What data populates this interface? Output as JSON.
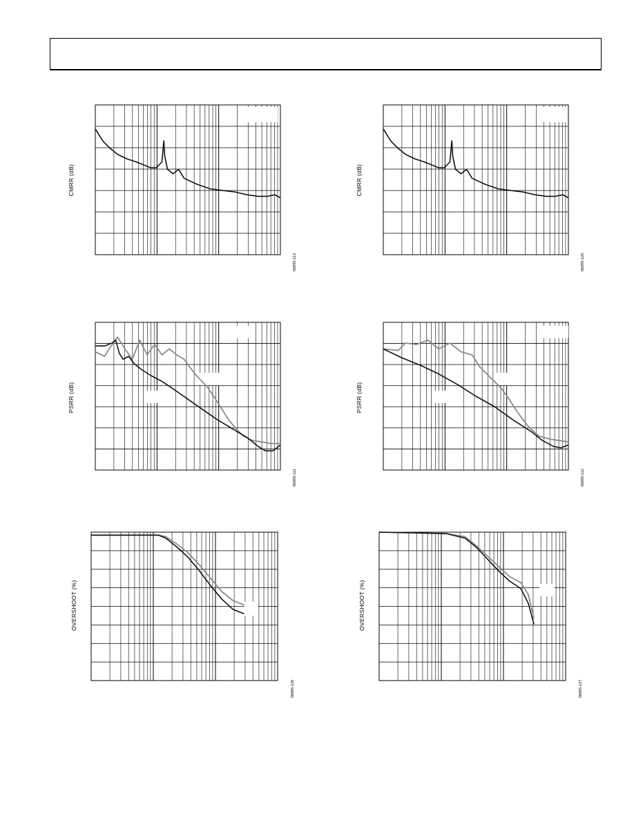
{
  "page": {
    "header_text": ""
  },
  "panels": [
    {
      "id": "p1",
      "ylabel": "CMRR (dB)",
      "figcode": "06895-113"
    },
    {
      "id": "p2",
      "ylabel": "CMRR (dB)",
      "figcode": "06895-120"
    },
    {
      "id": "p3",
      "ylabel": "PSRR (dB)",
      "figcode": "06895-111"
    },
    {
      "id": "p4",
      "ylabel": "PSRR (dB)",
      "figcode": "06895-112"
    },
    {
      "id": "p5",
      "ylabel": "OVERSHOOT (%)",
      "figcode": "06895-126"
    },
    {
      "id": "p6",
      "ylabel": "OVERSHOOT (%)",
      "figcode": "06895-127"
    }
  ],
  "colors": {
    "primary_series": "#111111",
    "secondary_series": "#8a8a8a",
    "grid": "#000000"
  },
  "chart_data": [
    {
      "type": "line",
      "title": "",
      "xlabel": "",
      "ylabel": "CMRR (dB)",
      "x_scale": "log",
      "grid": true,
      "series": [
        {
          "values": [
            [
              0.0,
              0.16
            ],
            [
              0.01,
              0.18
            ],
            [
              0.04,
              0.24
            ],
            [
              0.08,
              0.29
            ],
            [
              0.12,
              0.33
            ],
            [
              0.17,
              0.36
            ],
            [
              0.22,
              0.38
            ],
            [
              0.26,
              0.4
            ],
            [
              0.3,
              0.42
            ],
            [
              0.33,
              0.42
            ],
            [
              0.36,
              0.38
            ],
            [
              0.37,
              0.24
            ],
            [
              0.375,
              0.34
            ],
            [
              0.39,
              0.43
            ],
            [
              0.42,
              0.46
            ],
            [
              0.45,
              0.43
            ],
            [
              0.48,
              0.49
            ],
            [
              0.55,
              0.53
            ],
            [
              0.62,
              0.56
            ],
            [
              0.68,
              0.57
            ],
            [
              0.75,
              0.58
            ],
            [
              0.82,
              0.6
            ],
            [
              0.88,
              0.61
            ],
            [
              0.93,
              0.61
            ],
            [
              0.97,
              0.6
            ],
            [
              1.0,
              0.62
            ]
          ]
        }
      ]
    },
    {
      "type": "line",
      "title": "",
      "xlabel": "",
      "ylabel": "CMRR (dB)",
      "x_scale": "log",
      "grid": true,
      "series": [
        {
          "values": [
            [
              0.0,
              0.16
            ],
            [
              0.01,
              0.18
            ],
            [
              0.04,
              0.24
            ],
            [
              0.08,
              0.29
            ],
            [
              0.12,
              0.33
            ],
            [
              0.17,
              0.36
            ],
            [
              0.22,
              0.38
            ],
            [
              0.26,
              0.4
            ],
            [
              0.3,
              0.42
            ],
            [
              0.33,
              0.42
            ],
            [
              0.36,
              0.38
            ],
            [
              0.37,
              0.24
            ],
            [
              0.375,
              0.34
            ],
            [
              0.39,
              0.43
            ],
            [
              0.42,
              0.46
            ],
            [
              0.45,
              0.43
            ],
            [
              0.48,
              0.49
            ],
            [
              0.55,
              0.53
            ],
            [
              0.62,
              0.56
            ],
            [
              0.68,
              0.57
            ],
            [
              0.75,
              0.58
            ],
            [
              0.82,
              0.6
            ],
            [
              0.88,
              0.61
            ],
            [
              0.93,
              0.61
            ],
            [
              0.97,
              0.6
            ],
            [
              1.0,
              0.62
            ]
          ]
        }
      ]
    },
    {
      "type": "line",
      "title": "",
      "xlabel": "",
      "ylabel": "PSRR (dB)",
      "x_scale": "log",
      "grid": true,
      "series": [
        {
          "values": [
            [
              0.0,
              0.16
            ],
            [
              0.05,
              0.16
            ],
            [
              0.09,
              0.14
            ],
            [
              0.11,
              0.12
            ],
            [
              0.13,
              0.21
            ],
            [
              0.15,
              0.25
            ],
            [
              0.18,
              0.23
            ],
            [
              0.21,
              0.28
            ],
            [
              0.25,
              0.32
            ],
            [
              0.3,
              0.36
            ],
            [
              0.36,
              0.4
            ],
            [
              0.42,
              0.45
            ],
            [
              0.5,
              0.52
            ],
            [
              0.58,
              0.59
            ],
            [
              0.66,
              0.66
            ],
            [
              0.74,
              0.72
            ],
            [
              0.82,
              0.78
            ],
            [
              0.88,
              0.84
            ],
            [
              0.92,
              0.87
            ],
            [
              0.96,
              0.87
            ],
            [
              1.0,
              0.83
            ]
          ]
        },
        {
          "values": [
            [
              0.0,
              0.2
            ],
            [
              0.05,
              0.23
            ],
            [
              0.08,
              0.17
            ],
            [
              0.12,
              0.1
            ],
            [
              0.16,
              0.18
            ],
            [
              0.2,
              0.25
            ],
            [
              0.24,
              0.12
            ],
            [
              0.28,
              0.22
            ],
            [
              0.32,
              0.15
            ],
            [
              0.36,
              0.22
            ],
            [
              0.4,
              0.18
            ],
            [
              0.44,
              0.22
            ],
            [
              0.48,
              0.25
            ],
            [
              0.52,
              0.32
            ],
            [
              0.56,
              0.38
            ],
            [
              0.6,
              0.43
            ],
            [
              0.64,
              0.5
            ],
            [
              0.68,
              0.58
            ],
            [
              0.72,
              0.66
            ],
            [
              0.76,
              0.72
            ],
            [
              0.8,
              0.77
            ],
            [
              0.85,
              0.8
            ],
            [
              0.9,
              0.81
            ],
            [
              0.95,
              0.82
            ],
            [
              1.0,
              0.82
            ]
          ]
        }
      ]
    },
    {
      "type": "line",
      "title": "",
      "xlabel": "",
      "ylabel": "PSRR (dB)",
      "x_scale": "log",
      "grid": true,
      "series": [
        {
          "values": [
            [
              0.0,
              0.18
            ],
            [
              0.1,
              0.24
            ],
            [
              0.2,
              0.29
            ],
            [
              0.3,
              0.35
            ],
            [
              0.4,
              0.42
            ],
            [
              0.5,
              0.5
            ],
            [
              0.6,
              0.57
            ],
            [
              0.7,
              0.66
            ],
            [
              0.8,
              0.74
            ],
            [
              0.86,
              0.8
            ],
            [
              0.92,
              0.84
            ],
            [
              0.96,
              0.85
            ],
            [
              1.0,
              0.83
            ]
          ]
        },
        {
          "values": [
            [
              0.0,
              0.18
            ],
            [
              0.08,
              0.19
            ],
            [
              0.12,
              0.14
            ],
            [
              0.18,
              0.15
            ],
            [
              0.24,
              0.12
            ],
            [
              0.3,
              0.18
            ],
            [
              0.36,
              0.14
            ],
            [
              0.42,
              0.2
            ],
            [
              0.48,
              0.22
            ],
            [
              0.52,
              0.3
            ],
            [
              0.56,
              0.35
            ],
            [
              0.6,
              0.4
            ],
            [
              0.64,
              0.45
            ],
            [
              0.68,
              0.52
            ],
            [
              0.72,
              0.6
            ],
            [
              0.78,
              0.7
            ],
            [
              0.84,
              0.77
            ],
            [
              0.9,
              0.79
            ],
            [
              0.95,
              0.8
            ],
            [
              1.0,
              0.81
            ]
          ]
        }
      ]
    },
    {
      "type": "line",
      "title": "",
      "xlabel": "",
      "ylabel": "OVERSHOOT (%)",
      "x_scale": "log",
      "grid": true,
      "series": [
        {
          "values": [
            [
              0.0,
              0.02
            ],
            [
              0.36,
              0.02
            ],
            [
              0.4,
              0.04
            ],
            [
              0.46,
              0.1
            ],
            [
              0.52,
              0.17
            ],
            [
              0.58,
              0.26
            ],
            [
              0.64,
              0.36
            ],
            [
              0.7,
              0.45
            ],
            [
              0.76,
              0.52
            ],
            [
              0.82,
              0.55
            ]
          ]
        },
        {
          "values": [
            [
              0.0,
              0.02
            ],
            [
              0.36,
              0.02
            ],
            [
              0.4,
              0.03
            ],
            [
              0.46,
              0.08
            ],
            [
              0.52,
              0.14
            ],
            [
              0.58,
              0.22
            ],
            [
              0.64,
              0.31
            ],
            [
              0.7,
              0.4
            ],
            [
              0.76,
              0.46
            ],
            [
              0.82,
              0.49
            ]
          ]
        }
      ]
    },
    {
      "type": "line",
      "title": "",
      "xlabel": "",
      "ylabel": "OVERSHOOT (%)",
      "x_scale": "log",
      "grid": true,
      "series": [
        {
          "values": [
            [
              0.0,
              0.0
            ],
            [
              0.36,
              0.01
            ],
            [
              0.46,
              0.04
            ],
            [
              0.52,
              0.1
            ],
            [
              0.58,
              0.18
            ],
            [
              0.64,
              0.26
            ],
            [
              0.7,
              0.33
            ],
            [
              0.76,
              0.38
            ],
            [
              0.8,
              0.48
            ],
            [
              0.83,
              0.62
            ]
          ]
        },
        {
          "values": [
            [
              0.0,
              0.0
            ],
            [
              0.36,
              0.01
            ],
            [
              0.46,
              0.03
            ],
            [
              0.52,
              0.09
            ],
            [
              0.58,
              0.16
            ],
            [
              0.64,
              0.23
            ],
            [
              0.7,
              0.3
            ],
            [
              0.76,
              0.34
            ],
            [
              0.8,
              0.42
            ],
            [
              0.83,
              0.58
            ]
          ]
        }
      ]
    }
  ]
}
